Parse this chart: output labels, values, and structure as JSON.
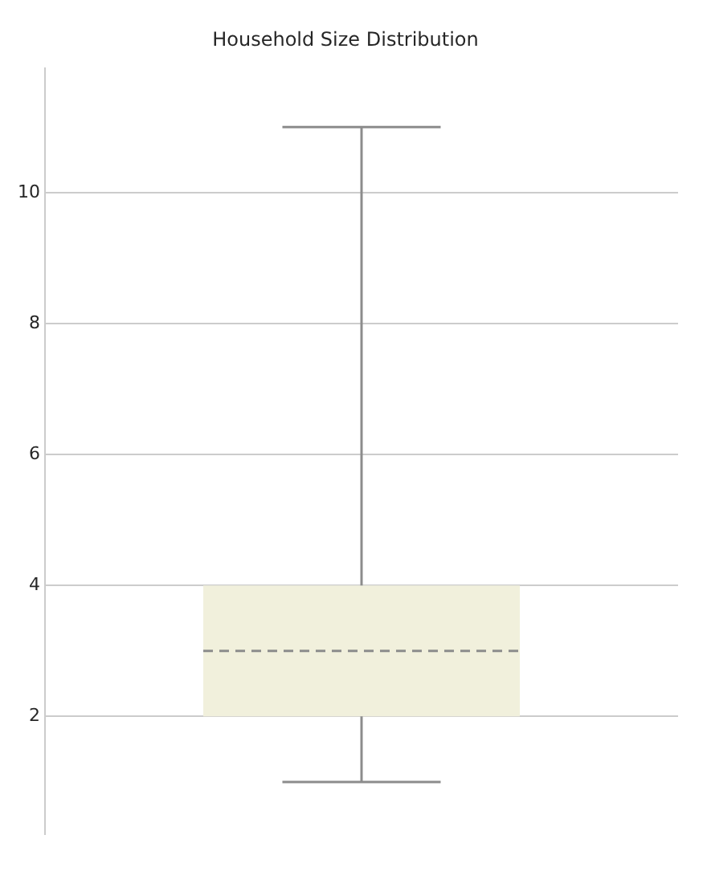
{
  "chart_data": {
    "type": "box",
    "title": "Household Size Distribution",
    "categories": [
      null
    ],
    "boxes": [
      {
        "low": 1,
        "q1": 2,
        "median": 3,
        "q3": 4,
        "high": 11
      }
    ],
    "color": "#f1f0dc",
    "ylim": [
      0.2,
      11.9
    ],
    "yticks": [
      2,
      4,
      6,
      8,
      10
    ],
    "grid": "y",
    "line_style": "dashed"
  }
}
